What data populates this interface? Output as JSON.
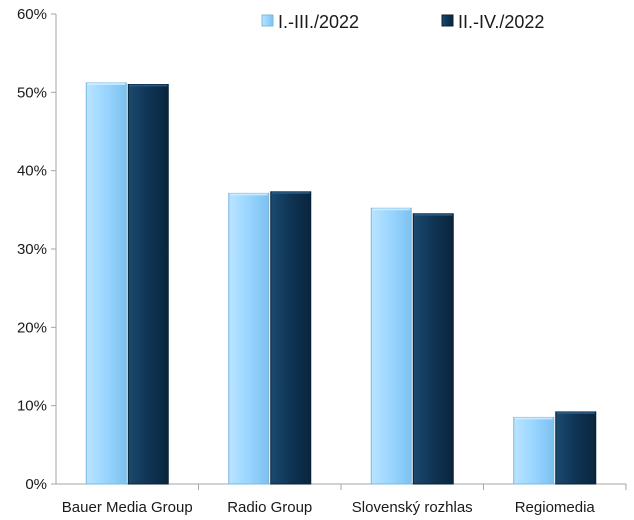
{
  "chart_data": {
    "type": "bar",
    "categories": [
      "Bauer Media Group",
      "Radio Group",
      "Slovenský rozhlas",
      "Regiomedia"
    ],
    "series": [
      {
        "name": "I.-III./2022",
        "values": [
          51.2,
          37.1,
          35.2,
          8.5
        ],
        "color": "#99d5ff"
      },
      {
        "name": "II.-IV./2022",
        "values": [
          51.0,
          37.3,
          34.5,
          9.2
        ],
        "color": "#0f3454"
      }
    ],
    "yticks": [
      "0%",
      "10%",
      "20%",
      "30%",
      "40%",
      "50%",
      "60%"
    ],
    "ylim": [
      0,
      60
    ],
    "grid": false,
    "legend_position": "top-right"
  }
}
